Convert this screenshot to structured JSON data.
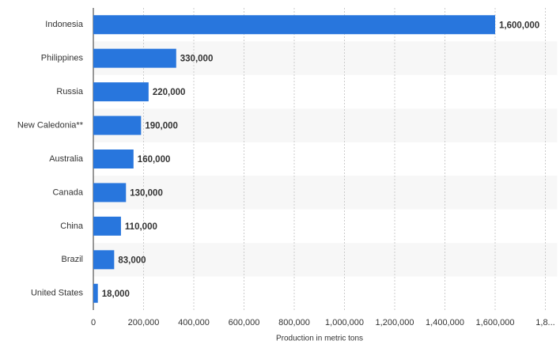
{
  "chart_data": {
    "type": "bar",
    "orientation": "horizontal",
    "categories": [
      "Indonesia",
      "Philippines",
      "Russia",
      "New Caledonia**",
      "Australia",
      "Canada",
      "China",
      "Brazil",
      "United States"
    ],
    "values": [
      1600000,
      330000,
      220000,
      190000,
      160000,
      130000,
      110000,
      83000,
      18000
    ],
    "value_labels": [
      "1,600,000",
      "330,000",
      "220,000",
      "190,000",
      "160,000",
      "130,000",
      "110,000",
      "83,000",
      "18,000"
    ],
    "color": "#2876dd",
    "xlabel": "Production in metric tons",
    "xlim": [
      0,
      1800000
    ],
    "xticks": [
      0,
      {
        "value": 200000,
        "label": "200,000"
      },
      {
        "value": 400000,
        "label": "400,000"
      },
      {
        "value": 600000,
        "label": "600,000"
      },
      {
        "value": 800000,
        "label": "800,000"
      },
      {
        "value": 1000000,
        "label": "1,000,000"
      },
      {
        "value": 1200000,
        "label": "1,200,000"
      },
      {
        "value": 1400000,
        "label": "1,400,000"
      },
      {
        "value": 1600000,
        "label": "1,600,000"
      },
      {
        "value": 1800000,
        "label": "1,8..."
      }
    ],
    "grid": true
  }
}
